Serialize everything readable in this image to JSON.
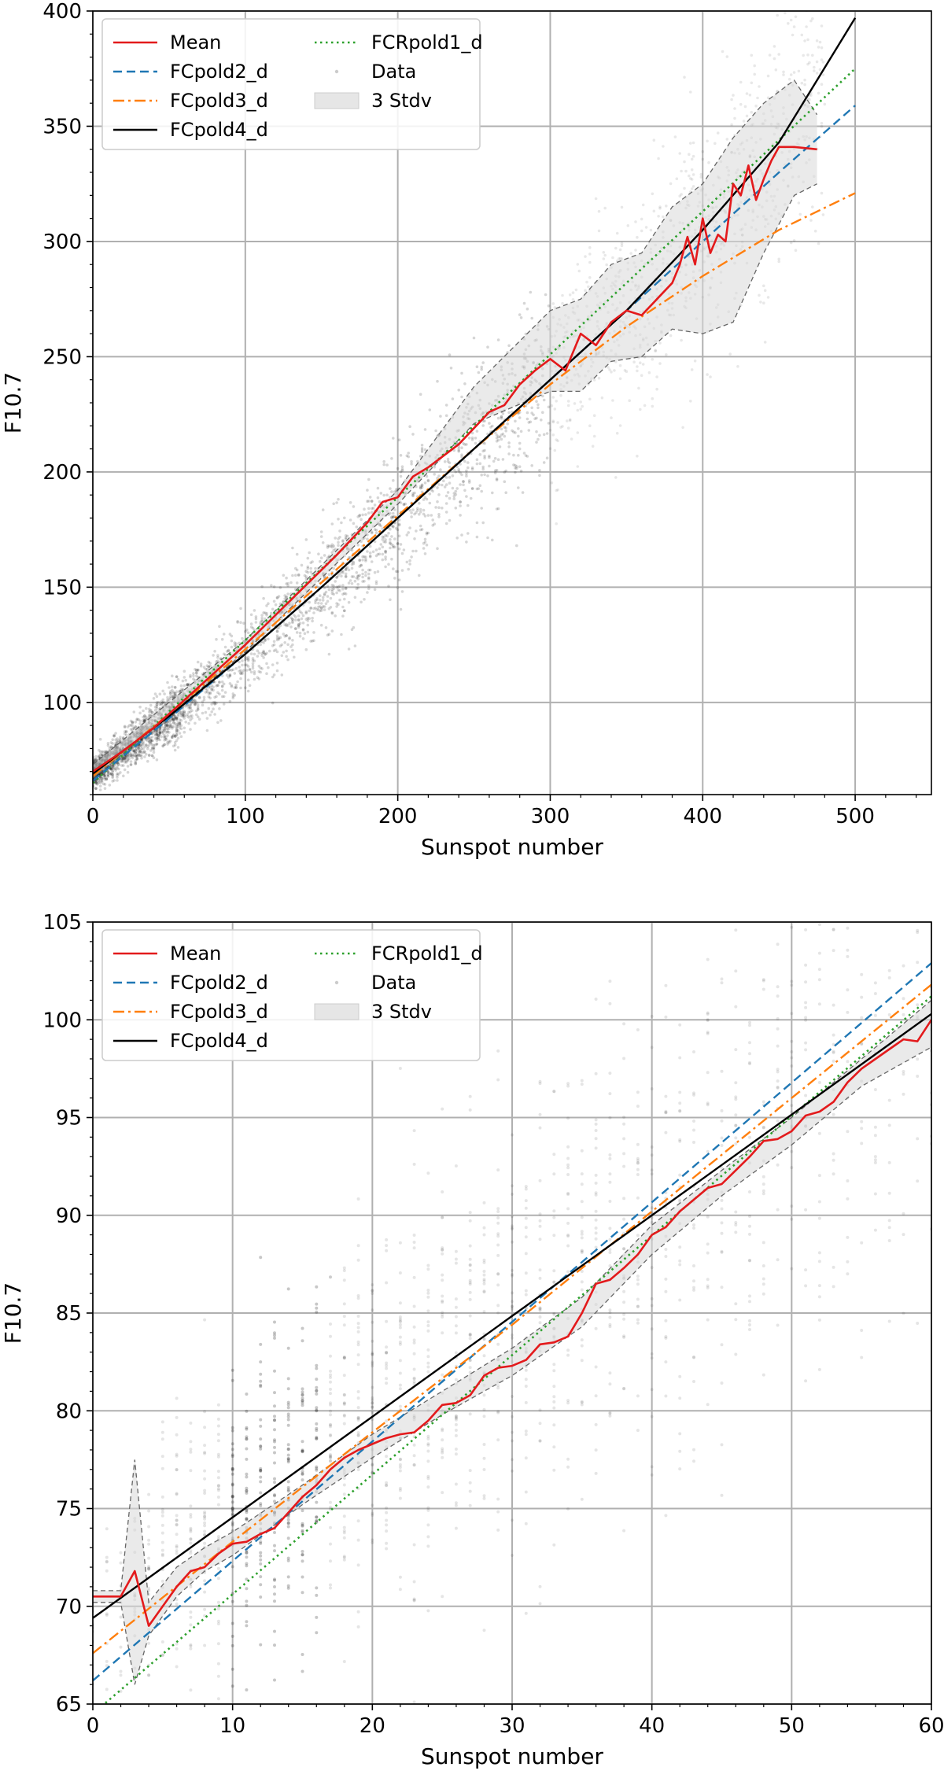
{
  "chart_data": [
    {
      "type": "scatter",
      "title": "",
      "xlabel": "Sunspot number",
      "ylabel": "F10.7",
      "xlim": [
        0,
        550
      ],
      "ylim": [
        60,
        400
      ],
      "xticks": [
        0,
        100,
        200,
        300,
        400,
        500
      ],
      "xtick_labels": [
        "0",
        "100",
        "200",
        "300",
        "400",
        "500"
      ],
      "yticks": [
        100,
        150,
        200,
        250,
        300,
        350,
        400
      ],
      "ytick_labels": [
        "100",
        "150",
        "200",
        "250",
        "300",
        "350",
        "400"
      ],
      "grid": true,
      "legend": {
        "placement": "upper-left",
        "columns": 2,
        "entries": [
          {
            "label": "Mean",
            "style": "solid",
            "color": "#e31a1c"
          },
          {
            "label": "FCpold2_d",
            "style": "dashed",
            "color": "#1f77b4"
          },
          {
            "label": "FCpold3_d",
            "style": "dashdot",
            "color": "#ff7f0e"
          },
          {
            "label": "FCpold4_d",
            "style": "solid",
            "color": "#000000"
          },
          {
            "label": "FCRpold1_d",
            "style": "dotted",
            "color": "#2ca02c"
          },
          {
            "label": "Data",
            "style": "marker",
            "color": "#999999"
          },
          {
            "label": "3 Stdv",
            "style": "patch",
            "color": "#e6e6e6"
          }
        ]
      },
      "series": [
        {
          "name": "Mean",
          "x": [
            0,
            20,
            40,
            60,
            80,
            100,
            120,
            140,
            160,
            180,
            190,
            200,
            210,
            220,
            240,
            260,
            270,
            280,
            290,
            300,
            310,
            320,
            330,
            340,
            350,
            360,
            370,
            380,
            385,
            390,
            395,
            400,
            405,
            410,
            415,
            420,
            425,
            430,
            435,
            440,
            445,
            450,
            460,
            475
          ],
          "y": [
            70,
            79,
            89,
            101,
            113,
            125,
            138,
            151,
            164,
            178,
            187,
            189,
            198,
            202,
            212,
            226,
            229,
            238,
            244,
            249,
            244,
            260,
            255,
            265,
            270,
            268,
            275,
            282,
            290,
            302,
            290,
            310,
            295,
            303,
            300,
            325,
            320,
            333,
            318,
            327,
            335,
            341,
            341,
            340
          ]
        },
        {
          "name": "FCpold2_d",
          "x": [
            0,
            50,
            100,
            150,
            200,
            250,
            300,
            350,
            400,
            450,
            500
          ],
          "y": [
            66,
            93,
            121,
            150,
            180,
            210,
            240,
            270,
            300,
            330,
            359
          ]
        },
        {
          "name": "FCpold3_d",
          "x": [
            0,
            50,
            100,
            150,
            200,
            250,
            300,
            350,
            400,
            450,
            500
          ],
          "y": [
            68,
            95,
            123,
            152,
            181,
            210,
            238,
            263,
            285,
            305,
            321
          ]
        },
        {
          "name": "FCpold4_d",
          "x": [
            0,
            50,
            100,
            150,
            200,
            250,
            300,
            350,
            400,
            450,
            500
          ],
          "y": [
            69,
            94,
            121,
            150,
            180,
            210,
            240,
            270,
            305,
            343,
            397
          ]
        },
        {
          "name": "FCRpold1_d",
          "x": [
            0,
            500
          ],
          "y": [
            65,
            375
          ]
        },
        {
          "name": "3 Stdv",
          "x": [
            0,
            100,
            200,
            250,
            300,
            320,
            340,
            360,
            380,
            400,
            420,
            440,
            460,
            475
          ],
          "upper": [
            73,
            127,
            192,
            237,
            270,
            275,
            290,
            295,
            315,
            325,
            345,
            360,
            370,
            355
          ],
          "lower": [
            67,
            122,
            186,
            221,
            235,
            235,
            248,
            250,
            262,
            260,
            265,
            295,
            320,
            325
          ]
        }
      ],
      "scatter": {
        "name": "Data",
        "description_free": true
      }
    },
    {
      "type": "scatter",
      "title": "",
      "xlabel": "Sunspot number",
      "ylabel": "F10.7",
      "xlim": [
        0,
        60
      ],
      "ylim": [
        65,
        105
      ],
      "xticks": [
        0,
        10,
        20,
        30,
        40,
        50,
        60
      ],
      "xtick_labels": [
        "0",
        "10",
        "20",
        "30",
        "40",
        "50",
        "60"
      ],
      "yticks": [
        65,
        70,
        75,
        80,
        85,
        90,
        95,
        100,
        105
      ],
      "ytick_labels": [
        "65",
        "70",
        "75",
        "80",
        "85",
        "90",
        "95",
        "100",
        "105"
      ],
      "grid": true,
      "legend": {
        "placement": "upper-left",
        "columns": 2,
        "entries": [
          {
            "label": "Mean",
            "style": "solid",
            "color": "#e31a1c"
          },
          {
            "label": "FCpold2_d",
            "style": "dashed",
            "color": "#1f77b4"
          },
          {
            "label": "FCpold3_d",
            "style": "dashdot",
            "color": "#ff7f0e"
          },
          {
            "label": "FCpold4_d",
            "style": "solid",
            "color": "#000000"
          },
          {
            "label": "FCRpold1_d",
            "style": "dotted",
            "color": "#2ca02c"
          },
          {
            "label": "Data",
            "style": "marker",
            "color": "#999999"
          },
          {
            "label": "3 Stdv",
            "style": "patch",
            "color": "#e6e6e6"
          }
        ]
      },
      "series": [
        {
          "name": "Mean",
          "x": [
            0,
            2,
            3,
            4,
            5,
            6,
            7,
            8,
            9,
            10,
            11,
            12,
            13,
            14,
            15,
            16,
            17,
            18,
            19,
            20,
            21,
            22,
            23,
            24,
            25,
            26,
            27,
            28,
            29,
            30,
            31,
            32,
            33,
            34,
            35,
            36,
            37,
            38,
            39,
            40,
            41,
            42,
            43,
            44,
            45,
            46,
            47,
            48,
            49,
            50,
            51,
            52,
            53,
            54,
            55,
            56,
            57,
            58,
            59,
            60
          ],
          "y": [
            70.5,
            70.5,
            71.8,
            69.0,
            70.0,
            71.0,
            71.8,
            72.0,
            72.7,
            73.2,
            73.3,
            73.7,
            74.0,
            74.8,
            75.6,
            76.2,
            77.0,
            77.6,
            78.0,
            78.3,
            78.6,
            78.8,
            78.9,
            79.5,
            80.3,
            80.4,
            80.8,
            81.8,
            82.2,
            82.3,
            82.6,
            83.4,
            83.5,
            83.8,
            85.0,
            86.5,
            86.7,
            87.3,
            88.0,
            89.0,
            89.4,
            90.2,
            90.8,
            91.4,
            91.6,
            92.3,
            93.0,
            93.8,
            93.9,
            94.3,
            95.1,
            95.3,
            95.8,
            96.8,
            97.5,
            98.0,
            98.5,
            99.0,
            98.9,
            100.0
          ]
        },
        {
          "name": "FCpold2_d",
          "x": [
            0,
            60
          ],
          "y": [
            66.2,
            102.9
          ]
        },
        {
          "name": "FCpold3_d",
          "x": [
            0,
            10,
            20,
            30,
            40,
            50,
            60
          ],
          "y": [
            67.6,
            73.3,
            78.9,
            84.4,
            90.2,
            96.0,
            101.8
          ]
        },
        {
          "name": "FCpold4_d",
          "x": [
            0,
            60
          ],
          "y": [
            69.4,
            100.3
          ]
        },
        {
          "name": "FCRpold1_d",
          "x": [
            0,
            60
          ],
          "y": [
            64.5,
            101.2
          ]
        },
        {
          "name": "3 Stdv",
          "x": [
            0,
            2,
            3,
            4,
            6,
            8,
            10,
            15,
            20,
            25,
            30,
            35,
            40,
            45,
            50,
            55,
            60
          ],
          "upper": [
            70.8,
            70.8,
            77.5,
            70.2,
            72.0,
            73.0,
            73.8,
            76.2,
            78.8,
            81.0,
            83.2,
            85.8,
            89.5,
            92.3,
            95.0,
            98.0,
            101.0
          ],
          "lower": [
            70.2,
            70.2,
            66.0,
            68.5,
            70.5,
            71.8,
            72.6,
            75.2,
            77.6,
            79.8,
            81.8,
            84.3,
            88.0,
            91.0,
            93.6,
            96.6,
            98.6
          ]
        }
      ],
      "scatter": {
        "name": "Data",
        "description_free": true
      }
    }
  ]
}
